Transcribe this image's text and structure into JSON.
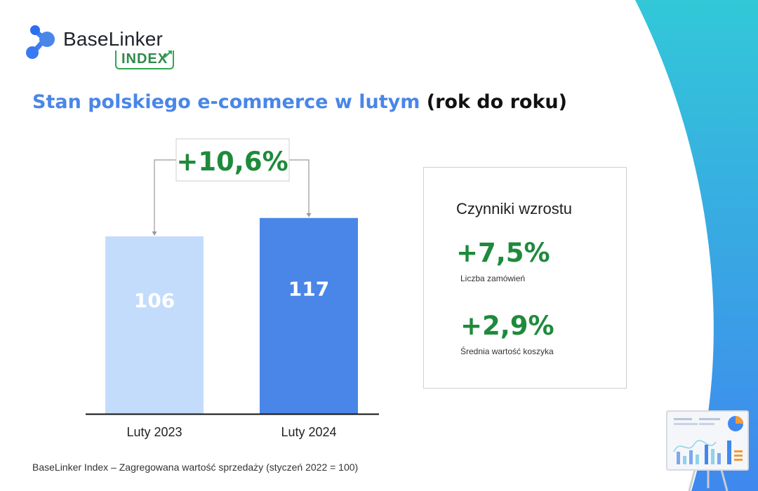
{
  "brand": {
    "name": "BaseLinker",
    "badge": "INDEX"
  },
  "title": {
    "highlight": "Stan polskiego e-commerce w lutym",
    "rest": "(rok do roku)"
  },
  "chart_data": {
    "type": "bar",
    "categories": [
      "Luty 2023",
      "Luty 2024"
    ],
    "values": [
      106,
      117
    ],
    "value_labels": [
      "106",
      "117"
    ],
    "change_label": "+10,6%",
    "colors": [
      "#c3dcfc",
      "#4a86e8"
    ]
  },
  "factors": {
    "title": "Czynniki wzrostu",
    "items": [
      {
        "value": "+7,5%",
        "label": "Liczba zamówień"
      },
      {
        "value": "+2,9%",
        "label": "Średnia wartość koszyka"
      }
    ]
  },
  "footer": "BaseLinker Index – Zagregowana wartość sprzedaży (styczeń 2022 = 100)",
  "accent_colors": {
    "blue": "#4a86e8",
    "green": "#1e8a3c",
    "cyan": "#2ec6d8"
  }
}
